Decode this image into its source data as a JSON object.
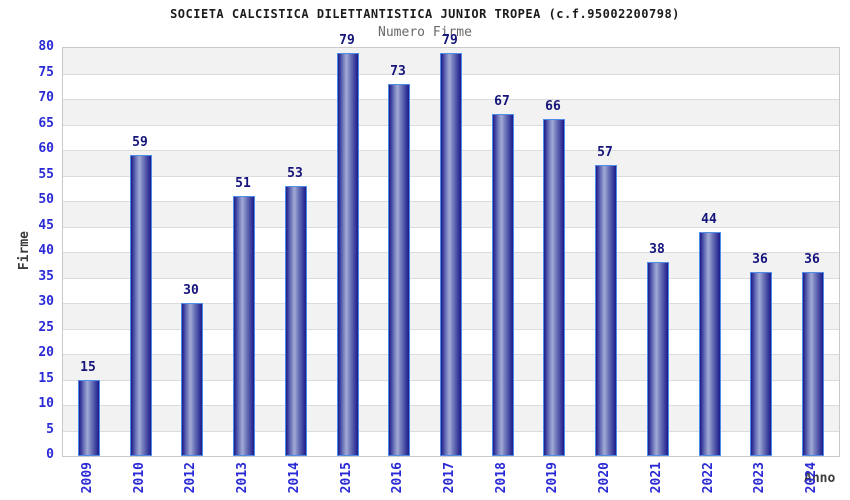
{
  "chart_data": {
    "type": "bar",
    "title": "SOCIETA CALCISTICA DILETTANTISTICA JUNIOR TROPEA (c.f.95002200798)",
    "subtitle": "Numero Firme",
    "xlabel": "Anno",
    "ylabel": "Firme",
    "categories": [
      "2009",
      "2010",
      "2012",
      "2013",
      "2014",
      "2015",
      "2016",
      "2017",
      "2018",
      "2019",
      "2020",
      "2021",
      "2022",
      "2023",
      "2024"
    ],
    "values": [
      15,
      59,
      30,
      51,
      53,
      79,
      73,
      79,
      67,
      66,
      57,
      38,
      44,
      36,
      36
    ],
    "ylim": [
      0,
      80
    ],
    "ytick_step": 5,
    "grid": true,
    "legend": false,
    "layout_hints": {
      "bands_alternating": true,
      "x_tick_rotation_deg": 90,
      "value_labels_above_bars": true
    },
    "colors": {
      "background": "#ffffff",
      "title": "#1b1b1b",
      "subtitle": "#6a6a6a",
      "axis_title": "#3c3c3c",
      "tick_label": "#2a2ad6",
      "value_label": "#14147a",
      "band_gray": "#f2f2f2",
      "band_white": "#ffffff",
      "gridline": "#dcdcdc",
      "plot_border": "#c9c9c9",
      "bar_border": "#4f8ce8",
      "bar_dark": "#1b1b8a",
      "bar_mid": "#6d76ba",
      "bar_light": "#a2aad4"
    }
  }
}
